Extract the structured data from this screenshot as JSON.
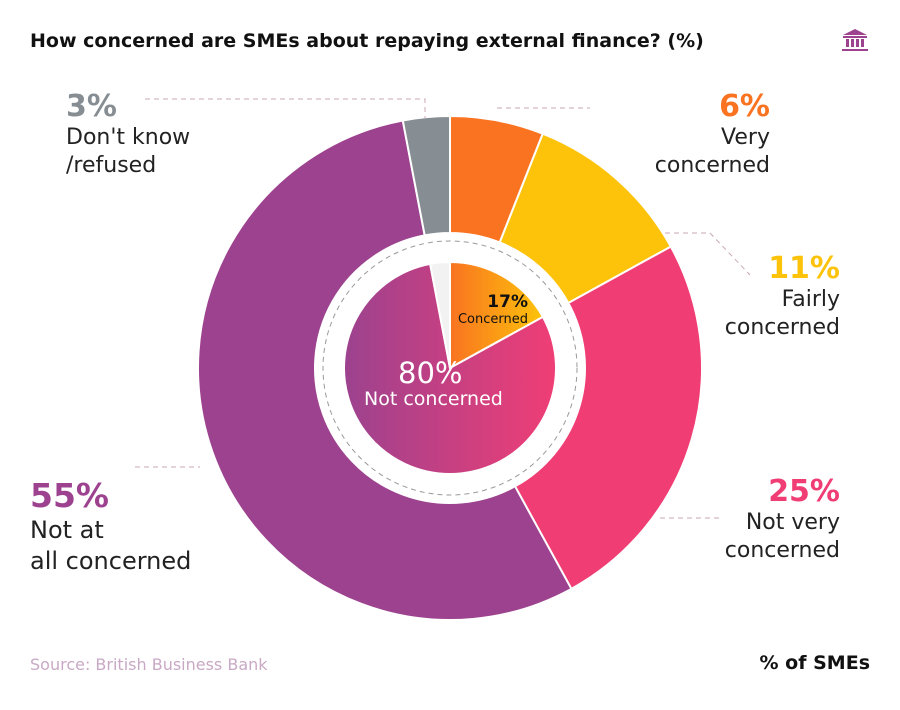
{
  "chart_data": {
    "type": "pie",
    "title": "How concerned are SMEs about repaying external finance? (%)",
    "outer": [
      {
        "label": "Very concerned",
        "pct_label": "6%",
        "value": 6,
        "color": "#f97321"
      },
      {
        "label": "Fairly concerned",
        "pct_label": "11%",
        "value": 11,
        "color": "#fdc30a"
      },
      {
        "label": "Not very concerned",
        "pct_label": "25%",
        "value": 25,
        "color": "#f03e75"
      },
      {
        "label": "Not at all concerned",
        "pct_label": "55%",
        "value": 55,
        "color": "#9c428f"
      },
      {
        "label": "Don't know /refused",
        "pct_label": "3%",
        "value": 3,
        "color": "#868e93"
      }
    ],
    "inner": [
      {
        "label": "Concerned",
        "pct_label": "17%",
        "value": 17
      },
      {
        "label": "Not concerned",
        "pct_label": "80%",
        "value": 80
      },
      {
        "label": "",
        "value": 3,
        "color": "#f2f2f2"
      }
    ],
    "source": "Source: British Business Bank",
    "unit_label": "% of SMEs"
  },
  "labels": {
    "dk_line1": "Don't know",
    "dk_line2": "/refused",
    "very_line1": "Very",
    "very_line2": "concerned",
    "fairly_line1": "Fairly",
    "fairly_line2": "concerned",
    "notvery_line1": "Not very",
    "notvery_line2": "concerned",
    "notall_line1": "Not at",
    "notall_line2": "all concerned"
  },
  "icon": "bank-building-icon"
}
